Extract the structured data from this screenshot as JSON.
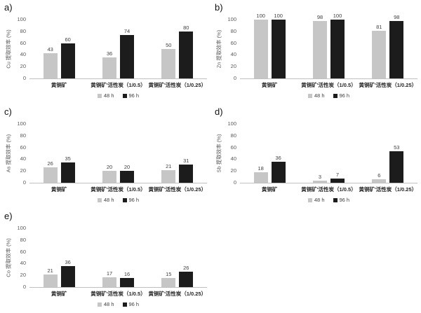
{
  "figure": {
    "background": "#ffffff",
    "panel_letters": [
      "a)",
      "b)",
      "c)",
      "d)",
      "e)"
    ]
  },
  "colors": {
    "bar_48h": "#c6c6c6",
    "bar_96h": "#1c1c1c",
    "axis_line": "#c0c0c0",
    "tick_text": "#595959",
    "data_label_text": "#404040",
    "category_text": "#262626"
  },
  "legend": {
    "items": [
      {
        "label": "48 h",
        "swatch": "#c6c6c6"
      },
      {
        "label": "96 h",
        "swatch": "#1c1c1c"
      }
    ],
    "position": "bottom"
  },
  "chart_data": [
    {
      "panel": "a)",
      "type": "bar",
      "title": "",
      "xlabel": "",
      "ylabel": "Cu 提取效率 (%)",
      "ylim": [
        0,
        100
      ],
      "yticks": [
        0,
        20,
        40,
        60,
        80,
        100
      ],
      "grid": false,
      "legend_position": "bottom",
      "categories": [
        "黄铜矿",
        "黄铜矿'活性炭（1/0.5）",
        "黄铜矿'活性炭（1/0.25）"
      ],
      "series": [
        {
          "name": "48 h",
          "color": "#c6c6c6",
          "values": [
            43,
            36,
            50
          ]
        },
        {
          "name": "96 h",
          "color": "#1c1c1c",
          "values": [
            60,
            74,
            80
          ]
        }
      ]
    },
    {
      "panel": "b)",
      "type": "bar",
      "title": "",
      "xlabel": "",
      "ylabel": "Zn 提取效率 (%)",
      "ylim": [
        0,
        100
      ],
      "yticks": [
        0,
        20,
        40,
        60,
        80,
        100
      ],
      "grid": false,
      "legend_position": "bottom",
      "categories": [
        "黄铜矿",
        "黄铜矿'活性炭（1/0.5）",
        "黄铜矿'活性炭（1/0.25）"
      ],
      "series": [
        {
          "name": "48 h",
          "color": "#c6c6c6",
          "values": [
            100,
            98,
            81
          ]
        },
        {
          "name": "96 h",
          "color": "#1c1c1c",
          "values": [
            100,
            100,
            98
          ]
        }
      ]
    },
    {
      "panel": "c)",
      "type": "bar",
      "title": "",
      "xlabel": "",
      "ylabel": "As 提取效率 (%)",
      "ylim": [
        0,
        100
      ],
      "yticks": [
        0,
        20,
        40,
        60,
        80,
        100
      ],
      "grid": false,
      "legend_position": "bottom",
      "categories": [
        "黄铜矿",
        "黄铜矿'活性炭（1/0.5）",
        "黄铜矿'活性炭（1/0.25）"
      ],
      "series": [
        {
          "name": "48 h",
          "color": "#c6c6c6",
          "values": [
            26,
            20,
            21
          ]
        },
        {
          "name": "96 h",
          "color": "#1c1c1c",
          "values": [
            35,
            20,
            31
          ]
        }
      ]
    },
    {
      "panel": "d)",
      "type": "bar",
      "title": "",
      "xlabel": "",
      "ylabel": "Sb 提取效率 (%)",
      "ylim": [
        0,
        100
      ],
      "yticks": [
        0,
        20,
        40,
        60,
        80,
        100
      ],
      "grid": false,
      "legend_position": "bottom",
      "categories": [
        "黄铜矿",
        "黄铜矿'活性炭（1/0.5）",
        "黄铜矿'活性炭（1/0.25）"
      ],
      "series": [
        {
          "name": "48 h",
          "color": "#c6c6c6",
          "values": [
            18,
            3,
            6
          ]
        },
        {
          "name": "96 h",
          "color": "#1c1c1c",
          "values": [
            36,
            7,
            53
          ]
        }
      ]
    },
    {
      "panel": "e)",
      "type": "bar",
      "title": "",
      "xlabel": "",
      "ylabel": "Co 提取效率 (%)",
      "ylim": [
        0,
        100
      ],
      "yticks": [
        0,
        20,
        40,
        60,
        80,
        100
      ],
      "grid": false,
      "legend_position": "bottom",
      "categories": [
        "黄铜矿",
        "黄铜矿'活性炭（1/0.5）",
        "黄铜矿'活性炭（1/0.25）"
      ],
      "series": [
        {
          "name": "48 h",
          "color": "#c6c6c6",
          "values": [
            21,
            17,
            15
          ]
        },
        {
          "name": "96 h",
          "color": "#1c1c1c",
          "values": [
            36,
            16,
            26
          ]
        }
      ]
    }
  ]
}
